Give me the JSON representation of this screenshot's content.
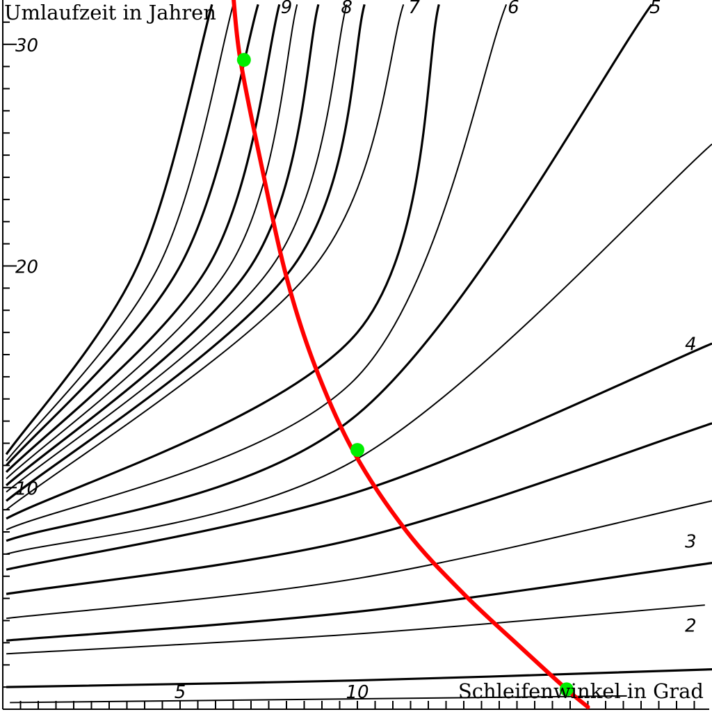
{
  "chart_data": {
    "type": "line",
    "xlabel": "Schleifenwinkel in Grad",
    "ylabel": "Umlaufzeit in Jahren",
    "xlim": [
      0,
      20
    ],
    "ylim": [
      0,
      32
    ],
    "x_ticks": [
      5,
      10
    ],
    "y_ticks": [
      10,
      20,
      30
    ],
    "grid": false,
    "legend": "none",
    "colors": {
      "family_curves": "#000000",
      "highlight_curve": "#ff0000",
      "markers": "#00ee00"
    },
    "curve_labels": [
      {
        "text": "9",
        "x": 8.0,
        "y": 31.4
      },
      {
        "text": "8",
        "x": 9.7,
        "y": 31.4
      },
      {
        "text": "7",
        "x": 11.6,
        "y": 31.4
      },
      {
        "text": "6",
        "x": 14.4,
        "y": 31.4
      },
      {
        "text": "5",
        "x": 18.4,
        "y": 31.4
      },
      {
        "text": "4",
        "x": 19.4,
        "y": 16.2
      },
      {
        "text": "3",
        "x": 19.4,
        "y": 7.3
      },
      {
        "text": "2",
        "x": 19.4,
        "y": 3.5
      }
    ],
    "series": [
      {
        "values": [
          [
            0.2,
            0.3
          ],
          [
            17.6,
            0.6
          ]
        ],
        "weight": "thin"
      },
      {
        "values": [
          [
            0.1,
            1.0
          ],
          [
            10.0,
            1.3
          ],
          [
            20.0,
            1.8
          ]
        ],
        "weight": "bold"
      },
      {
        "values": [
          [
            0.1,
            2.5
          ],
          [
            10.0,
            3.4
          ],
          [
            19.8,
            4.7
          ]
        ],
        "weight": "thin"
      },
      {
        "values": [
          [
            0.1,
            3.1
          ],
          [
            10.0,
            4.4
          ],
          [
            20.0,
            6.6
          ]
        ],
        "weight": "bold"
      },
      {
        "values": [
          [
            0.1,
            4.1
          ],
          [
            10.0,
            5.9
          ],
          [
            20.0,
            9.4
          ]
        ],
        "weight": "thin"
      },
      {
        "values": [
          [
            0.1,
            5.2
          ],
          [
            10.0,
            7.7
          ],
          [
            20.0,
            12.9
          ]
        ],
        "weight": "bold"
      },
      {
        "values": [
          [
            0.1,
            6.3
          ],
          [
            10.0,
            9.8
          ],
          [
            20.0,
            16.5
          ]
        ],
        "weight": "bold"
      },
      {
        "values": [
          [
            0.1,
            7.0
          ],
          [
            10.0,
            11.3
          ],
          [
            20.0,
            25.5
          ]
        ],
        "weight": "thin"
      },
      {
        "values": [
          [
            0.1,
            7.6
          ],
          [
            10.0,
            13.3
          ],
          [
            18.3,
            31.8
          ]
        ],
        "weight": "bold"
      },
      {
        "values": [
          [
            0.1,
            8.1
          ],
          [
            10.0,
            15.0
          ],
          [
            14.2,
            31.8
          ]
        ],
        "weight": "thin"
      },
      {
        "values": [
          [
            0.1,
            8.6
          ],
          [
            10.0,
            17.0
          ],
          [
            12.3,
            31.8
          ]
        ],
        "weight": "bold"
      },
      {
        "values": [
          [
            0.1,
            9.0
          ],
          [
            8.8,
            20.0
          ],
          [
            11.3,
            31.8
          ]
        ],
        "weight": "thin"
      },
      {
        "values": [
          [
            0.1,
            9.4
          ],
          [
            8.2,
            20.0
          ],
          [
            10.2,
            31.8
          ]
        ],
        "weight": "bold"
      },
      {
        "values": [
          [
            0.1,
            9.8
          ],
          [
            7.6,
            20.0
          ],
          [
            9.7,
            31.8
          ]
        ],
        "weight": "thin"
      },
      {
        "values": [
          [
            0.1,
            10.1
          ],
          [
            7.0,
            20.0
          ],
          [
            8.9,
            31.8
          ]
        ],
        "weight": "bold"
      },
      {
        "values": [
          [
            0.1,
            10.4
          ],
          [
            6.4,
            20.0
          ],
          [
            8.3,
            31.8
          ]
        ],
        "weight": "thin"
      },
      {
        "values": [
          [
            0.1,
            10.7
          ],
          [
            5.8,
            20.0
          ],
          [
            7.8,
            31.8
          ]
        ],
        "weight": "bold"
      },
      {
        "values": [
          [
            0.1,
            11.0
          ],
          [
            5.0,
            20.0
          ],
          [
            7.2,
            31.8
          ]
        ],
        "weight": "bold"
      },
      {
        "values": [
          [
            0.1,
            11.2
          ],
          [
            4.4,
            20.0
          ],
          [
            6.5,
            31.8
          ]
        ],
        "weight": "thin"
      },
      {
        "values": [
          [
            0.1,
            11.5
          ],
          [
            3.8,
            20.0
          ],
          [
            5.9,
            31.8
          ]
        ],
        "weight": "bold"
      },
      {
        "values": [
          [
            6.5,
            32.2
          ],
          [
            6.7,
            29.3
          ],
          [
            7.3,
            24.5
          ],
          [
            8.0,
            19.5
          ],
          [
            8.8,
            15.5
          ],
          [
            9.9,
            11.6
          ],
          [
            11.4,
            8.0
          ],
          [
            13.0,
            5.2
          ],
          [
            14.6,
            2.8
          ],
          [
            15.9,
            0.9
          ],
          [
            16.5,
            0.1
          ]
        ],
        "highlight": true
      }
    ],
    "markers": [
      {
        "x": 6.8,
        "y": 29.3
      },
      {
        "x": 10.0,
        "y": 11.7
      },
      {
        "x": 15.9,
        "y": 0.9
      }
    ]
  }
}
